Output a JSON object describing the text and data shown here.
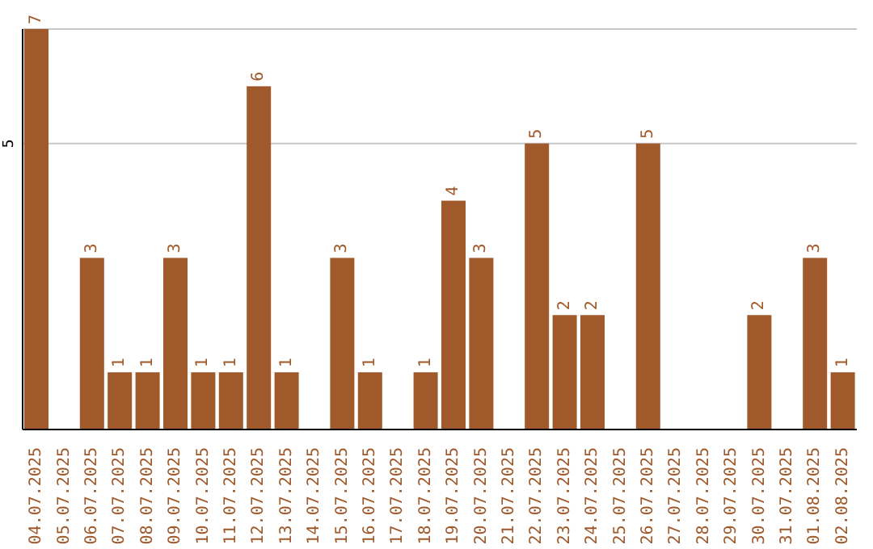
{
  "chart_data": {
    "type": "bar",
    "categories": [
      "04.07.2025",
      "05.07.2025",
      "06.07.2025",
      "07.07.2025",
      "08.07.2025",
      "09.07.2025",
      "10.07.2025",
      "11.07.2025",
      "12.07.2025",
      "13.07.2025",
      "14.07.2025",
      "15.07.2025",
      "16.07.2025",
      "17.07.2025",
      "18.07.2025",
      "19.07.2025",
      "20.07.2025",
      "21.07.2025",
      "22.07.2025",
      "23.07.2025",
      "24.07.2025",
      "25.07.2025",
      "26.07.2025",
      "27.07.2025",
      "28.07.2025",
      "29.07.2025",
      "30.07.2025",
      "31.07.2025",
      "01.08.2025",
      "02.08.2025"
    ],
    "values": [
      7,
      0,
      3,
      1,
      1,
      3,
      1,
      1,
      6,
      1,
      0,
      3,
      1,
      0,
      1,
      4,
      3,
      0,
      5,
      2,
      2,
      0,
      5,
      0,
      0,
      0,
      2,
      0,
      3,
      1
    ],
    "value_labels": [
      "7",
      null,
      "3",
      "1",
      "1",
      "3",
      "1",
      "1",
      "6",
      "1",
      null,
      "3",
      "1",
      null,
      "1",
      "4",
      "3",
      null,
      "5",
      "2",
      "2",
      null,
      "5",
      null,
      null,
      null,
      "2",
      null,
      "3",
      "1"
    ],
    "color": "#a0592a",
    "ylim": [
      0,
      7
    ],
    "yticks": [
      5
    ],
    "grid": "y"
  }
}
